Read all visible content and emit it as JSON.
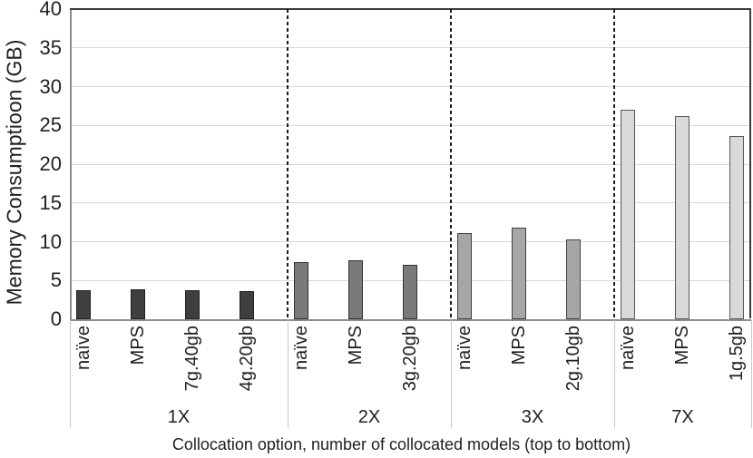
{
  "chart_data": {
    "type": "bar",
    "title": "",
    "xlabel": "Collocation option, number of collocated models (top to bottom)",
    "ylabel": "Memory Consumptioon (GB)",
    "ylim": [
      0,
      40
    ],
    "yticks": [
      0,
      5,
      10,
      15,
      20,
      25,
      30,
      35,
      40
    ],
    "grid": "horizontal",
    "legend": "none",
    "gridline_color": "#d9d9d9",
    "separator_style": "dashed black vertical between groups",
    "groups": [
      {
        "label": "1X",
        "fill": "#3f3f3f",
        "border": "#1f1f1f",
        "bars": [
          {
            "label": "naïve",
            "value": 3.8
          },
          {
            "label": "MPS",
            "value": 3.85
          },
          {
            "label": "7g.40gb",
            "value": 3.8
          },
          {
            "label": "4g.20gb",
            "value": 3.6
          }
        ]
      },
      {
        "label": "2X",
        "fill": "#7a7a7a",
        "border": "#333333",
        "bars": [
          {
            "label": "naïve",
            "value": 7.4
          },
          {
            "label": "MPS",
            "value": 7.6
          },
          {
            "label": "3g.20gb",
            "value": 7.0
          }
        ]
      },
      {
        "label": "3X",
        "fill": "#a6a6a6",
        "border": "#404040",
        "bars": [
          {
            "label": "naïve",
            "value": 11.1
          },
          {
            "label": "MPS",
            "value": 11.8
          },
          {
            "label": "2g.10gb",
            "value": 10.3
          }
        ]
      },
      {
        "label": "7X",
        "fill": "#d9d9d9",
        "border": "#595959",
        "bars": [
          {
            "label": "naïve",
            "value": 27.0
          },
          {
            "label": "MPS",
            "value": 26.2
          },
          {
            "label": "1g.5gb",
            "value": 23.6
          }
        ]
      }
    ]
  }
}
